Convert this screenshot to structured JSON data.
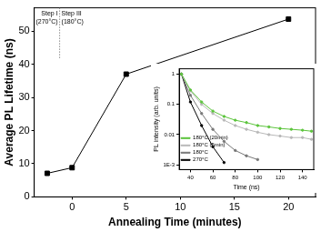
{
  "chart_data": [
    {
      "type": "line",
      "xlabel": "Annealing Time (minutes)",
      "ylabel": "Average PL Lifetime (ns)",
      "x": [
        -2.3,
        0,
        5,
        20
      ],
      "values": [
        7.1,
        8.8,
        37,
        53.6
      ],
      "color": "#000000",
      "marker": "square",
      "xlim": [
        -3.5,
        22.5
      ],
      "xticks": [
        0,
        5,
        10,
        15,
        20
      ],
      "ylim": [
        0,
        57
      ],
      "yticks": [
        0,
        10,
        20,
        30,
        40,
        50
      ],
      "annotations": [
        "Step I",
        "(270°C)",
        "Step III",
        "(180°C)"
      ],
      "grid": false
    },
    {
      "type": "line",
      "log": "y",
      "xlabel": "Time (ns)",
      "ylabel": "PL intensity (arb. units)",
      "x": [
        32,
        40,
        50,
        60,
        70,
        80,
        90,
        100,
        110,
        120,
        130,
        140,
        148
      ],
      "series": [
        {
          "name": "180°C (20min)",
          "color": "#5cc43c",
          "values": [
            1,
            0.3,
            0.12,
            0.06,
            0.04,
            0.03,
            0.025,
            0.02,
            0.018,
            0.016,
            0.015,
            0.014,
            0.013
          ]
        },
        {
          "name": "180°C (5min)",
          "color": "#b8b8b8",
          "values": [
            1,
            0.28,
            0.1,
            0.05,
            0.03,
            0.02,
            0.015,
            0.012,
            0.01,
            0.009,
            0.008,
            0.008,
            0.007
          ]
        },
        {
          "name": "180°C",
          "color": "#777777",
          "values": [
            1,
            0.2,
            0.05,
            0.015,
            0.006,
            0.003,
            0.002,
            0.0015,
            null,
            null,
            null,
            null,
            null
          ]
        },
        {
          "name": "270°C",
          "color": "#000000",
          "values": [
            1,
            0.12,
            0.02,
            0.004,
            0.0012,
            null,
            null,
            null,
            null,
            null,
            null,
            null,
            null
          ]
        }
      ],
      "marker": "circle",
      "line_style": "solid",
      "xlim": [
        30,
        150
      ],
      "xticks": [
        40,
        60,
        80,
        100,
        120,
        140
      ],
      "ylim": [
        0.0007,
        1.5
      ],
      "yticks": [
        {
          "value": 0.001,
          "label": "1E-3"
        },
        0.01,
        0.1,
        1
      ],
      "legend": "upper right",
      "grid": false
    }
  ]
}
